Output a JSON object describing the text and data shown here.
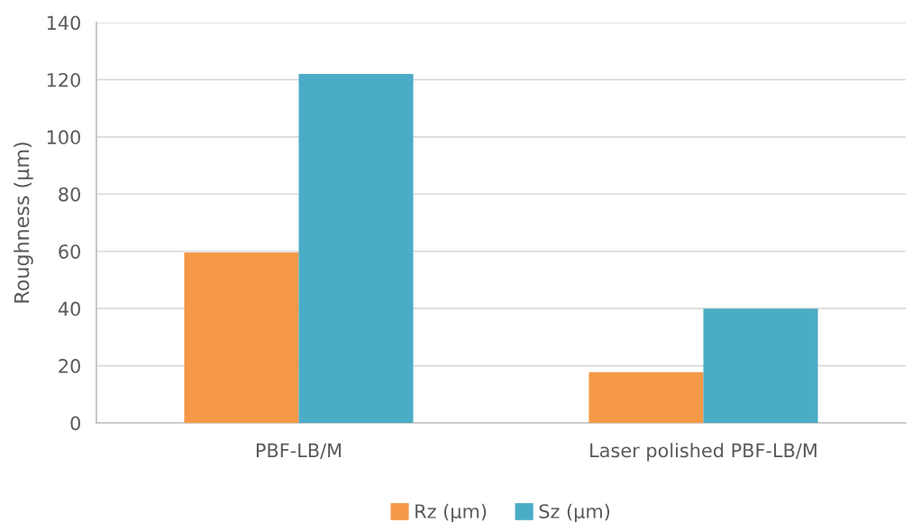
{
  "chart_data": {
    "type": "bar",
    "ylabel": "Roughness (µm)",
    "categories": [
      "PBF-LB/M",
      "Laser polished PBF-LB/M"
    ],
    "series": [
      {
        "name": "Rz (µm)",
        "color": "#f59847",
        "values": [
          59.6,
          17.7
        ]
      },
      {
        "name": "Sz (µm)",
        "color": "#4bacc6",
        "values": [
          122,
          40
        ]
      }
    ],
    "ylim": [
      0,
      140
    ],
    "yticks": [
      0,
      20,
      40,
      60,
      80,
      100,
      120,
      140
    ],
    "grid": "y",
    "legend": "bottom"
  }
}
